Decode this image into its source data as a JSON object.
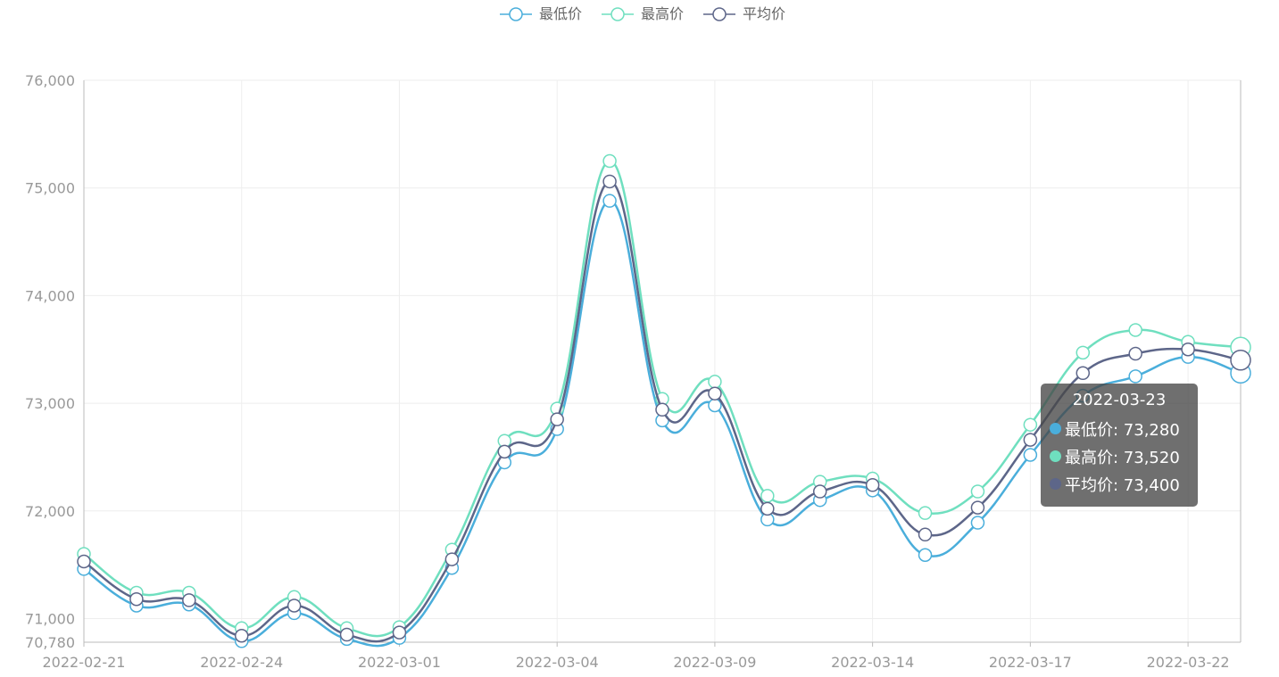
{
  "colors": {
    "min": "#4aaedb",
    "max": "#6fdfbf",
    "avg": "#5d6689"
  },
  "chart_data": {
    "type": "line",
    "smooth": true,
    "x": [
      "2022-02-21",
      "2022-02-22",
      "2022-02-23",
      "2022-02-24",
      "2022-02-25",
      "2022-02-28",
      "2022-03-01",
      "2022-03-02",
      "2022-03-03",
      "2022-03-04",
      "2022-03-07",
      "2022-03-08",
      "2022-03-09",
      "2022-03-10",
      "2022-03-11",
      "2022-03-14",
      "2022-03-15",
      "2022-03-16",
      "2022-03-17",
      "2022-03-18",
      "2022-03-21",
      "2022-03-22",
      "2022-03-23"
    ],
    "x_tick_labels": [
      "2022-02-21",
      "2022-02-24",
      "2022-03-01",
      "2022-03-04",
      "2022-03-09",
      "2022-03-14",
      "2022-03-17",
      "2022-03-22"
    ],
    "y_tick_labels": [
      "70,780",
      "71,000",
      "72,000",
      "73,000",
      "74,000",
      "75,000",
      "76,000"
    ],
    "y_ticks": [
      70780,
      71000,
      72000,
      73000,
      74000,
      75000,
      76000
    ],
    "ylim": [
      70780,
      76000
    ],
    "grid": true,
    "legend_position": "top-center",
    "series": [
      {
        "name": "最低价",
        "color_key": "min",
        "values": [
          71460,
          71120,
          71130,
          70790,
          71050,
          70810,
          70820,
          71470,
          72450,
          72760,
          74880,
          72840,
          72980,
          71920,
          72100,
          72190,
          71590,
          71890,
          72520,
          73070,
          73250,
          73430,
          73280
        ]
      },
      {
        "name": "最高价",
        "color_key": "max",
        "values": [
          71600,
          71240,
          71240,
          70910,
          71200,
          70910,
          70920,
          71640,
          72650,
          72950,
          75250,
          73040,
          73200,
          72140,
          72270,
          72300,
          71980,
          72180,
          72800,
          73470,
          73680,
          73570,
          73520
        ]
      },
      {
        "name": "平均价",
        "color_key": "avg",
        "values": [
          71530,
          71180,
          71170,
          70840,
          71120,
          70850,
          70870,
          71550,
          72550,
          72850,
          75060,
          72940,
          73090,
          72020,
          72180,
          72240,
          71780,
          72030,
          72660,
          73280,
          73460,
          73500,
          73400
        ]
      }
    ],
    "tooltip": {
      "title": "2022-03-23",
      "rows": [
        "最低价: 73,280",
        "最高价: 73,520",
        "平均价: 73,400"
      ]
    }
  }
}
